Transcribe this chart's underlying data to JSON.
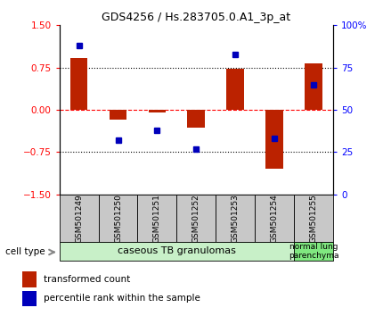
{
  "title": "GDS4256 / Hs.283705.0.A1_3p_at",
  "samples": [
    "GSM501249",
    "GSM501250",
    "GSM501251",
    "GSM501252",
    "GSM501253",
    "GSM501254",
    "GSM501255"
  ],
  "transformed_counts": [
    0.92,
    -0.18,
    -0.05,
    -0.32,
    0.73,
    -1.05,
    0.82
  ],
  "percentile_ranks": [
    88,
    32,
    38,
    27,
    83,
    33,
    65
  ],
  "ylim_left": [
    -1.5,
    1.5
  ],
  "ylim_right": [
    0,
    100
  ],
  "yticks_left": [
    -1.5,
    -0.75,
    0,
    0.75,
    1.5
  ],
  "yticks_right": [
    0,
    25,
    50,
    75,
    100
  ],
  "ytick_labels_right": [
    "0",
    "25",
    "50",
    "75",
    "100%"
  ],
  "bar_color": "#bb2200",
  "dot_color": "#0000bb",
  "group1_indices": [
    0,
    1,
    2,
    3,
    4,
    5
  ],
  "group2_indices": [
    6
  ],
  "group1_label": "caseous TB granulomas",
  "group2_label": "normal lung\nparenchyma",
  "group1_color": "#c8f0c8",
  "group2_color": "#80e880",
  "cell_type_label": "cell type",
  "legend_bar_label": "transformed count",
  "legend_dot_label": "percentile rank within the sample",
  "bar_width": 0.45,
  "sample_box_color": "#c8c8c8",
  "fig_bg": "#ffffff"
}
